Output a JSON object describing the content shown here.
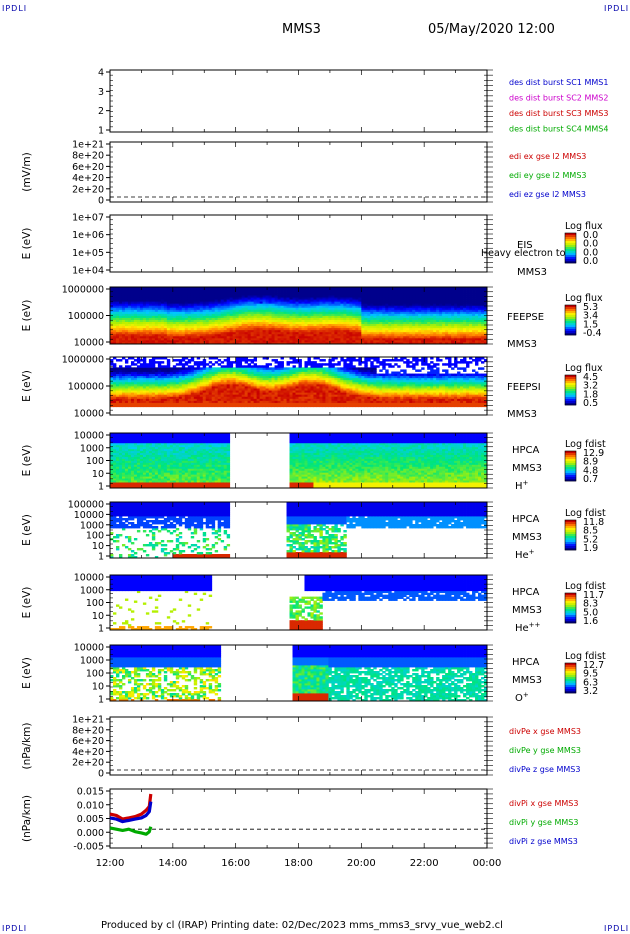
{
  "corners": {
    "top_left": "IPDLI",
    "top_right": "IPDLI",
    "bottom_left": "IPDLI",
    "bottom_right": "IPDLI"
  },
  "header": {
    "mission": "MMS3",
    "datetime": "05/May/2020 12:00"
  },
  "footer": {
    "text": "Produced by cl (IRAP)   Printing date: 02/Dec/2023   mms_mms3_srvy_vue_web2.cl"
  },
  "chart_data": [
    {
      "type": "line",
      "name": "desdist",
      "ylabel": "",
      "yticks": [
        "1",
        "2",
        "3",
        "4"
      ],
      "legend": [
        {
          "text": "des dist burst SC1 MMS1",
          "color": "#0000cc"
        },
        {
          "text": "des dist burst SC2 MMS2",
          "color": "#cc00cc"
        },
        {
          "text": "des dist burst SC3 MMS3",
          "color": "#cc0000"
        },
        {
          "text": "des dist burst SC4 MMS4",
          "color": "#00aa00"
        }
      ]
    },
    {
      "type": "line",
      "name": "edi",
      "ylabel": "(mV/m)",
      "yticks": [
        "0",
        "2e+20",
        "4e+20",
        "6e+20",
        "8e+20",
        "1e+21"
      ],
      "zero_line": true,
      "legend": [
        {
          "text": "edi ex gse l2 MMS3",
          "color": "#cc0000"
        },
        {
          "text": "edi ey gse l2 MMS3",
          "color": "#00aa00"
        },
        {
          "text": "edi ez gse l2 MMS3",
          "color": "#0000cc"
        }
      ]
    },
    {
      "type": "heatmap",
      "name": "eis",
      "ylabel": "E (eV)",
      "yticks": [
        "1e+04",
        "1e+05",
        "1e+06",
        "1e+07"
      ],
      "instrument": [
        "EIS",
        "MMS3"
      ],
      "overlay": "Heavy electron to",
      "colorbar": {
        "title": "Log flux",
        "ticks": [
          "0.0",
          "0.0",
          "0.0",
          "0.0"
        ]
      },
      "profile": "empty"
    },
    {
      "type": "heatmap",
      "name": "feepse",
      "ylabel": "E (eV)",
      "yticks": [
        "10000",
        "100000",
        "1000000"
      ],
      "instrument": [
        "FEEPSE",
        "MMS3"
      ],
      "colorbar": {
        "title": "Log flux",
        "ticks": [
          "5.3",
          "3.4",
          "1.5",
          "-0.4"
        ]
      },
      "profile": "feepse"
    },
    {
      "type": "heatmap",
      "name": "feepsi",
      "ylabel": "E (eV)",
      "yticks": [
        "10000",
        "100000",
        "1000000"
      ],
      "instrument": [
        "FEEPSI",
        "MMS3"
      ],
      "colorbar": {
        "title": "Log flux",
        "ticks": [
          "4.5",
          "3.2",
          "1.8",
          "0.5"
        ]
      },
      "profile": "feepsi"
    },
    {
      "type": "heatmap",
      "name": "hpca_h",
      "ylabel": "E (eV)",
      "yticks": [
        "1",
        "10",
        "100",
        "1000",
        "10000"
      ],
      "instrument": [
        "HPCA",
        "MMS3"
      ],
      "species": "H",
      "species_sup": "+",
      "colorbar": {
        "title": "Log fdist",
        "ticks": [
          "12.9",
          "8.9",
          "4.8",
          "0.7"
        ]
      },
      "profile": "hpca_h"
    },
    {
      "type": "heatmap",
      "name": "hpca_he",
      "ylabel": "E (eV)",
      "yticks": [
        "1",
        "10",
        "100",
        "1000",
        "10000",
        "100000"
      ],
      "instrument": [
        "HPCA",
        "MMS3"
      ],
      "species": "He",
      "species_sup": "+",
      "colorbar": {
        "title": "Log fdist",
        "ticks": [
          "11.8",
          "8.5",
          "5.2",
          "1.9"
        ]
      },
      "profile": "hpca_he"
    },
    {
      "type": "heatmap",
      "name": "hpca_hepp",
      "ylabel": "E (eV)",
      "yticks": [
        "1",
        "10",
        "100",
        "1000",
        "10000"
      ],
      "instrument": [
        "HPCA",
        "MMS3"
      ],
      "species": "He",
      "species_sup": "++",
      "colorbar": {
        "title": "Log fdist",
        "ticks": [
          "11.7",
          "8.3",
          "5.0",
          "1.6"
        ]
      },
      "profile": "hpca_hepp"
    },
    {
      "type": "heatmap",
      "name": "hpca_o",
      "ylabel": "E (eV)",
      "yticks": [
        "1",
        "10",
        "100",
        "1000",
        "10000"
      ],
      "instrument": [
        "HPCA",
        "MMS3"
      ],
      "species": "O",
      "species_sup": "+",
      "colorbar": {
        "title": "Log fdist",
        "ticks": [
          "12.7",
          "9.5",
          "6.3",
          "3.2"
        ]
      },
      "profile": "hpca_o"
    },
    {
      "type": "line",
      "name": "divpe",
      "ylabel": "(nPa/km)",
      "yticks": [
        "0",
        "2e+20",
        "4e+20",
        "6e+20",
        "8e+20",
        "1e+21"
      ],
      "zero_line": true,
      "legend": [
        {
          "text": "divPe x gse MMS3",
          "color": "#cc0000"
        },
        {
          "text": "divPe y gse MMS3",
          "color": "#00aa00"
        },
        {
          "text": "divPe z gse MMS3",
          "color": "#0000cc"
        }
      ]
    },
    {
      "type": "line",
      "name": "divpi",
      "ylabel": "(nPa/km)",
      "yticks": [
        "-0.005",
        "0.000",
        "0.005",
        "0.010",
        "0.015"
      ],
      "ylim": [
        -0.0075,
        0.016
      ],
      "zero_line": true,
      "legend": [
        {
          "text": "divPi x gse MMS3",
          "color": "#cc0000"
        },
        {
          "text": "divPi y gse MMS3",
          "color": "#00aa00"
        },
        {
          "text": "divPi z gse MMS3",
          "color": "#0000cc"
        }
      ],
      "series": [
        {
          "name": "divPi x gse MMS3",
          "color": "#cc0000",
          "x": [
            12.0,
            12.2,
            12.4,
            12.6,
            12.8,
            13.0,
            13.15,
            13.25,
            13.3
          ],
          "y": [
            0.006,
            0.0055,
            0.004,
            0.0045,
            0.005,
            0.006,
            0.0075,
            0.009,
            0.014
          ]
        },
        {
          "name": "divPi y gse MMS3",
          "color": "#00aa00",
          "x": [
            12.0,
            12.2,
            12.4,
            12.6,
            12.8,
            13.0,
            13.15,
            13.25,
            13.3
          ],
          "y": [
            0.0005,
            0.0,
            -0.0005,
            0.0,
            -0.001,
            -0.0015,
            -0.002,
            -0.001,
            0.001
          ]
        },
        {
          "name": "divPi z gse MMS3",
          "color": "#0000cc",
          "x": [
            12.0,
            12.2,
            12.4,
            12.6,
            12.8,
            13.0,
            13.15,
            13.25,
            13.3
          ],
          "y": [
            0.0045,
            0.004,
            0.003,
            0.0035,
            0.004,
            0.0045,
            0.0055,
            0.007,
            0.011
          ]
        }
      ]
    }
  ],
  "time_axis": {
    "ticks": [
      "12:00",
      "14:00",
      "16:00",
      "18:00",
      "20:00",
      "22:00",
      "00:00"
    ]
  }
}
